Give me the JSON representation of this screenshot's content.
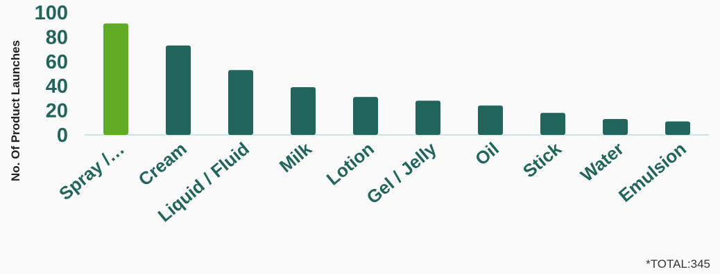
{
  "chart_data": {
    "type": "bar",
    "categories": [
      "Spray /…",
      "Cream",
      "Liquid / Fluid",
      "Milk",
      "Lotion",
      "Gel / Jelly",
      "Oil",
      "Stick",
      "Water",
      "Emulsion"
    ],
    "values": [
      91,
      73,
      53,
      39,
      31,
      28,
      24,
      18,
      13,
      11
    ],
    "highlight_index": 0,
    "ylabel": "No. Of Product Launches",
    "ylim": [
      0,
      100
    ],
    "yticks": [
      0,
      20,
      40,
      60,
      80,
      100
    ],
    "grid": false,
    "legend": "none"
  },
  "colors": {
    "bar": "#21655d",
    "highlight": "#62ab24",
    "tick_text": "#21655d",
    "baseline": "#c6e8e4"
  },
  "footnote": "*TOTAL:345"
}
